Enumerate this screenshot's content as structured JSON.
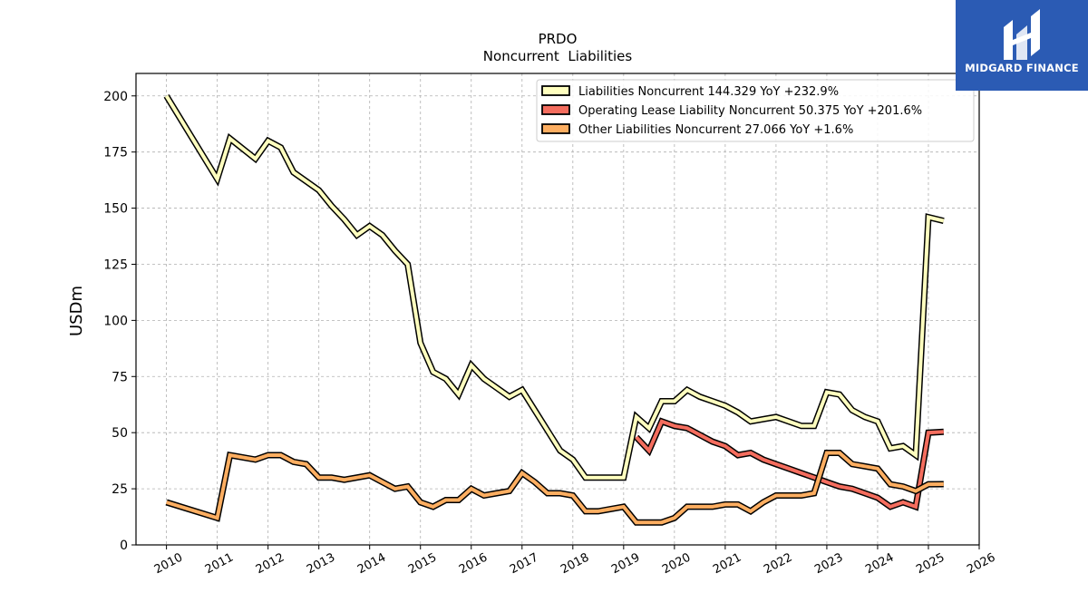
{
  "chart_data": {
    "type": "line",
    "title": "PRDO",
    "subtitle": "Noncurrent  Liabilities",
    "ylabel": "USDm",
    "xlabel": "",
    "xlim": [
      2009.4,
      2026.0
    ],
    "ylim": [
      0,
      210
    ],
    "yticks": [
      0,
      25,
      50,
      75,
      100,
      125,
      150,
      175,
      200
    ],
    "xticks": [
      2010,
      2011,
      2012,
      2013,
      2014,
      2015,
      2016,
      2017,
      2018,
      2019,
      2020,
      2021,
      2022,
      2023,
      2024,
      2025,
      2026
    ],
    "grid": true,
    "legend_position": "top-right",
    "series": [
      {
        "name": "Liabilities Noncurrent",
        "legend": "Liabilities Noncurrent  144.329 YoY +232.9%",
        "color": "#ffffbf",
        "points": [
          [
            2010.0,
            200
          ],
          [
            2011.0,
            163
          ],
          [
            2011.25,
            181
          ],
          [
            2011.75,
            172
          ],
          [
            2012.0,
            180
          ],
          [
            2012.25,
            177
          ],
          [
            2012.5,
            166
          ],
          [
            2012.75,
            162
          ],
          [
            2013.0,
            158
          ],
          [
            2013.25,
            151
          ],
          [
            2013.5,
            145
          ],
          [
            2013.75,
            138
          ],
          [
            2014.0,
            142
          ],
          [
            2014.25,
            138
          ],
          [
            2014.5,
            131
          ],
          [
            2014.75,
            125
          ],
          [
            2015.0,
            90
          ],
          [
            2015.25,
            77
          ],
          [
            2015.5,
            74
          ],
          [
            2015.75,
            67
          ],
          [
            2016.0,
            80
          ],
          [
            2016.25,
            74
          ],
          [
            2016.5,
            70
          ],
          [
            2016.75,
            66
          ],
          [
            2017.0,
            69
          ],
          [
            2017.25,
            60
          ],
          [
            2017.5,
            51
          ],
          [
            2017.75,
            42
          ],
          [
            2018.0,
            38
          ],
          [
            2018.25,
            30
          ],
          [
            2018.5,
            30
          ],
          [
            2018.75,
            30
          ],
          [
            2019.0,
            30
          ],
          [
            2019.25,
            57
          ],
          [
            2019.5,
            52
          ],
          [
            2019.75,
            64
          ],
          [
            2020.0,
            64
          ],
          [
            2020.25,
            69
          ],
          [
            2020.5,
            66
          ],
          [
            2020.75,
            64
          ],
          [
            2021.0,
            62
          ],
          [
            2021.25,
            59
          ],
          [
            2021.5,
            55
          ],
          [
            2021.75,
            56
          ],
          [
            2022.0,
            57
          ],
          [
            2022.25,
            55
          ],
          [
            2022.5,
            53
          ],
          [
            2022.75,
            53
          ],
          [
            2023.0,
            68
          ],
          [
            2023.25,
            67
          ],
          [
            2023.5,
            60
          ],
          [
            2023.75,
            57
          ],
          [
            2024.0,
            55
          ],
          [
            2024.25,
            43
          ],
          [
            2024.5,
            44
          ],
          [
            2024.75,
            40
          ],
          [
            2025.0,
            146
          ],
          [
            2025.3,
            144.329
          ]
        ]
      },
      {
        "name": "Operating Lease Liability Noncurrent",
        "legend": "Operating Lease Liability Noncurrent  50.375 YoY +201.6%",
        "color": "#f46d5e",
        "points": [
          [
            2019.25,
            48
          ],
          [
            2019.5,
            42
          ],
          [
            2019.75,
            55
          ],
          [
            2020.0,
            53
          ],
          [
            2020.25,
            52
          ],
          [
            2020.5,
            49
          ],
          [
            2020.75,
            46
          ],
          [
            2021.0,
            44
          ],
          [
            2021.25,
            40
          ],
          [
            2021.5,
            41
          ],
          [
            2021.75,
            38
          ],
          [
            2022.0,
            36
          ],
          [
            2022.25,
            34
          ],
          [
            2022.5,
            32
          ],
          [
            2022.75,
            30
          ],
          [
            2023.0,
            28
          ],
          [
            2023.25,
            26
          ],
          [
            2023.5,
            25
          ],
          [
            2023.75,
            23
          ],
          [
            2024.0,
            21
          ],
          [
            2024.25,
            17
          ],
          [
            2024.5,
            19
          ],
          [
            2024.75,
            17
          ],
          [
            2025.0,
            50
          ],
          [
            2025.3,
            50.375
          ]
        ]
      },
      {
        "name": "Other Liabilities Noncurrent",
        "legend": "Other Liabilities Noncurrent  27.066 YoY +1.6%",
        "color": "#fdae61",
        "points": [
          [
            2010.0,
            19
          ],
          [
            2011.0,
            12
          ],
          [
            2011.25,
            40
          ],
          [
            2011.75,
            38
          ],
          [
            2012.0,
            40
          ],
          [
            2012.25,
            40
          ],
          [
            2012.5,
            37
          ],
          [
            2012.75,
            36
          ],
          [
            2013.0,
            30
          ],
          [
            2013.25,
            30
          ],
          [
            2013.5,
            29
          ],
          [
            2013.75,
            30
          ],
          [
            2014.0,
            31
          ],
          [
            2014.25,
            28
          ],
          [
            2014.5,
            25
          ],
          [
            2014.75,
            26
          ],
          [
            2015.0,
            19
          ],
          [
            2015.25,
            17
          ],
          [
            2015.5,
            20
          ],
          [
            2015.75,
            20
          ],
          [
            2016.0,
            25
          ],
          [
            2016.25,
            22
          ],
          [
            2016.5,
            23
          ],
          [
            2016.75,
            24
          ],
          [
            2017.0,
            32
          ],
          [
            2017.25,
            28
          ],
          [
            2017.5,
            23
          ],
          [
            2017.75,
            23
          ],
          [
            2018.0,
            22
          ],
          [
            2018.25,
            15
          ],
          [
            2018.5,
            15
          ],
          [
            2018.75,
            16
          ],
          [
            2019.0,
            17
          ],
          [
            2019.25,
            10
          ],
          [
            2019.5,
            10
          ],
          [
            2019.75,
            10
          ],
          [
            2020.0,
            12
          ],
          [
            2020.25,
            17
          ],
          [
            2020.5,
            17
          ],
          [
            2020.75,
            17
          ],
          [
            2021.0,
            18
          ],
          [
            2021.25,
            18
          ],
          [
            2021.5,
            15
          ],
          [
            2021.75,
            19
          ],
          [
            2022.0,
            22
          ],
          [
            2022.25,
            22
          ],
          [
            2022.5,
            22
          ],
          [
            2022.75,
            23
          ],
          [
            2023.0,
            41
          ],
          [
            2023.25,
            41
          ],
          [
            2023.5,
            36
          ],
          [
            2023.75,
            35
          ],
          [
            2024.0,
            34
          ],
          [
            2024.25,
            27
          ],
          [
            2024.5,
            26
          ],
          [
            2024.75,
            24
          ],
          [
            2025.0,
            27
          ],
          [
            2025.3,
            27.066
          ]
        ]
      }
    ]
  },
  "branding": {
    "name": "MIDGARD FINANCE",
    "background_color": "#2b5bb4",
    "icon": "midgard-logo-icon"
  }
}
